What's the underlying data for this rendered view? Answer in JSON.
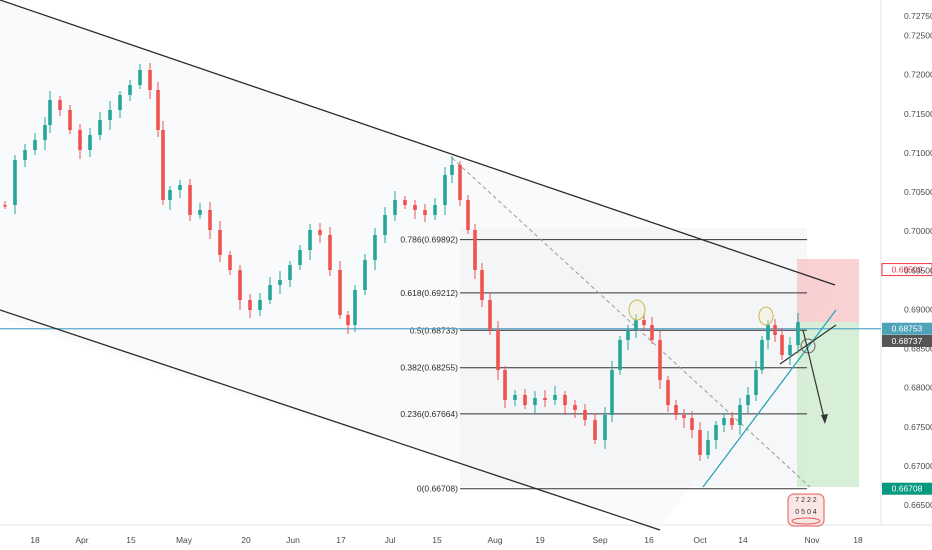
{
  "chart_data": {
    "type": "candlestick",
    "instrument_hint": "",
    "x_ticks": [
      "18",
      "Apr",
      "15",
      "May",
      "20",
      "Jun",
      "17",
      "Jul",
      "15",
      "Aug",
      "19",
      "Sep",
      "16",
      "Oct",
      "14",
      "Nov",
      "18"
    ],
    "y_ticks": [
      "0.72750",
      "0.72500",
      "0.72000",
      "0.71500",
      "0.71000",
      "0.70500",
      "0.70000",
      "0.69500",
      "0.69000",
      "0.68500",
      "0.68000",
      "0.67500",
      "0.67000",
      "0.66500"
    ],
    "ylim": [
      0.6635,
      0.7268
    ],
    "fib_levels": [
      {
        "label": "0.786(0.69892)",
        "value": 0.69892
      },
      {
        "label": "0.618(0.69212)",
        "value": 0.69212
      },
      {
        "label": "0.5(0.68733)",
        "value": 0.68733
      },
      {
        "label": "0.382(0.68255)",
        "value": 0.68255
      },
      {
        "label": "0.236(0.67664)",
        "value": 0.67664
      },
      {
        "label": "0(0.66708)",
        "value": 0.66708
      }
    ],
    "price_tags": [
      {
        "text": "0.69509",
        "value": 0.69509,
        "color": "#f23645",
        "style": "outline"
      },
      {
        "text": "0.68753",
        "value": 0.68753,
        "color": "#4fa3b8",
        "style": "filled"
      },
      {
        "text": "0.68737",
        "value": 0.68737,
        "color": "#555555",
        "style": "filled"
      },
      {
        "text": "0.66708",
        "value": 0.66708,
        "color": "#089981",
        "style": "filled"
      }
    ],
    "trade_zone": {
      "entry": 0.68753,
      "stop": 0.69509,
      "target": 0.66708
    },
    "colors": {
      "up": "#26a69a",
      "down": "#ef5350",
      "channel": "#2a2a2a",
      "horizontal_line": "#5aa9c9",
      "stop_zone": "#f7c0c4",
      "target_zone": "#c8e9c9",
      "fib_line": "#333333"
    },
    "grid": false,
    "logo_badge_text": [
      "7 2 2 2",
      "0 5 0 4"
    ]
  }
}
